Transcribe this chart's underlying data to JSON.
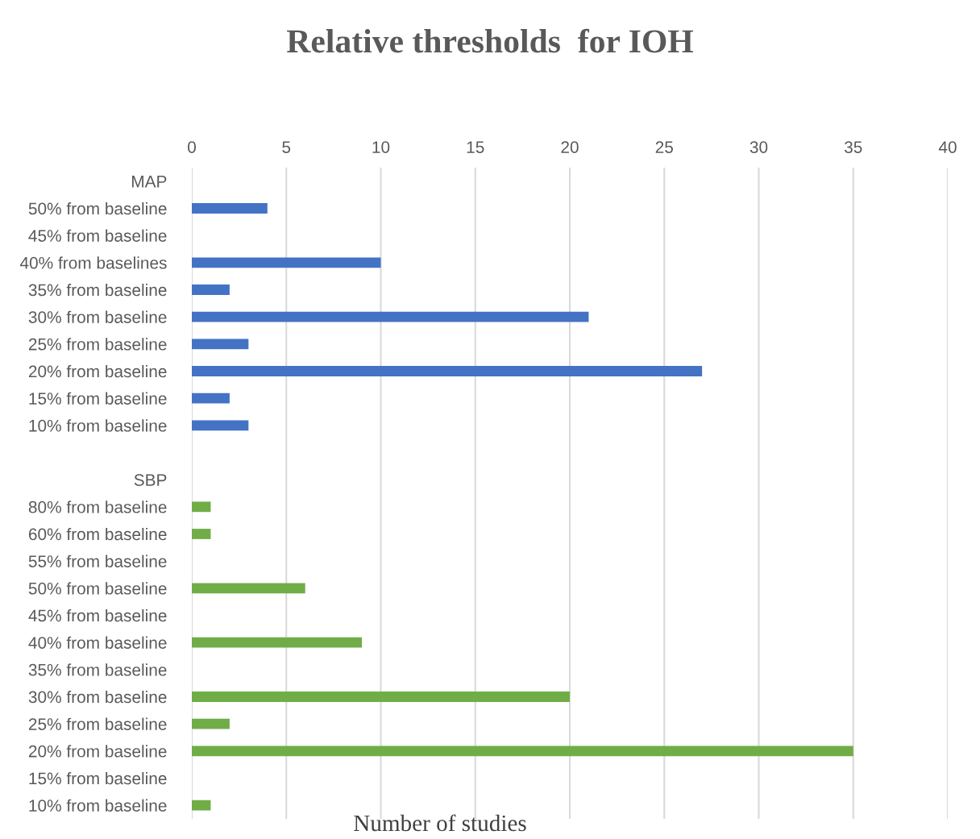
{
  "chart_data": {
    "type": "bar",
    "orientation": "horizontal",
    "title": "Relative thresholds  for IOH",
    "xlabel": "Number of studies",
    "categories": [
      "MAP",
      "50% from baseline",
      "45% from baseline",
      "40% from baselines",
      "35% from baseline",
      "30% from baseline",
      "25% from baseline",
      "20% from baseline",
      "15% from baseline",
      "10% from baseline",
      null,
      "SBP",
      "80% from baseline",
      "60% from baseline",
      "55% from baseline",
      "50% from baseline",
      "45% from baseline",
      "40% from baseline",
      "35% from baseline",
      "30% from baseline",
      "25% from baseline",
      "20% from baseline",
      "15% from baseline",
      "10% from baseline"
    ],
    "values": [
      null,
      4,
      0,
      10,
      2,
      21,
      3,
      27,
      2,
      3,
      null,
      null,
      1,
      1,
      0,
      6,
      0,
      9,
      0,
      20,
      2,
      35,
      0,
      1
    ],
    "colors": [
      "#4472c4",
      "#4472c4",
      "#4472c4",
      "#4472c4",
      "#4472c4",
      "#4472c4",
      "#4472c4",
      "#4472c4",
      "#4472c4",
      "#4472c4",
      "#4472c4",
      "#70ad47",
      "#70ad47",
      "#70ad47",
      "#70ad47",
      "#70ad47",
      "#70ad47",
      "#70ad47",
      "#70ad47",
      "#70ad47",
      "#70ad47",
      "#70ad47",
      "#70ad47",
      "#70ad47"
    ],
    "xlim": [
      0,
      40
    ],
    "xticks": [
      0,
      5,
      10,
      15,
      20,
      25,
      30,
      35,
      40
    ],
    "grid": "x"
  }
}
